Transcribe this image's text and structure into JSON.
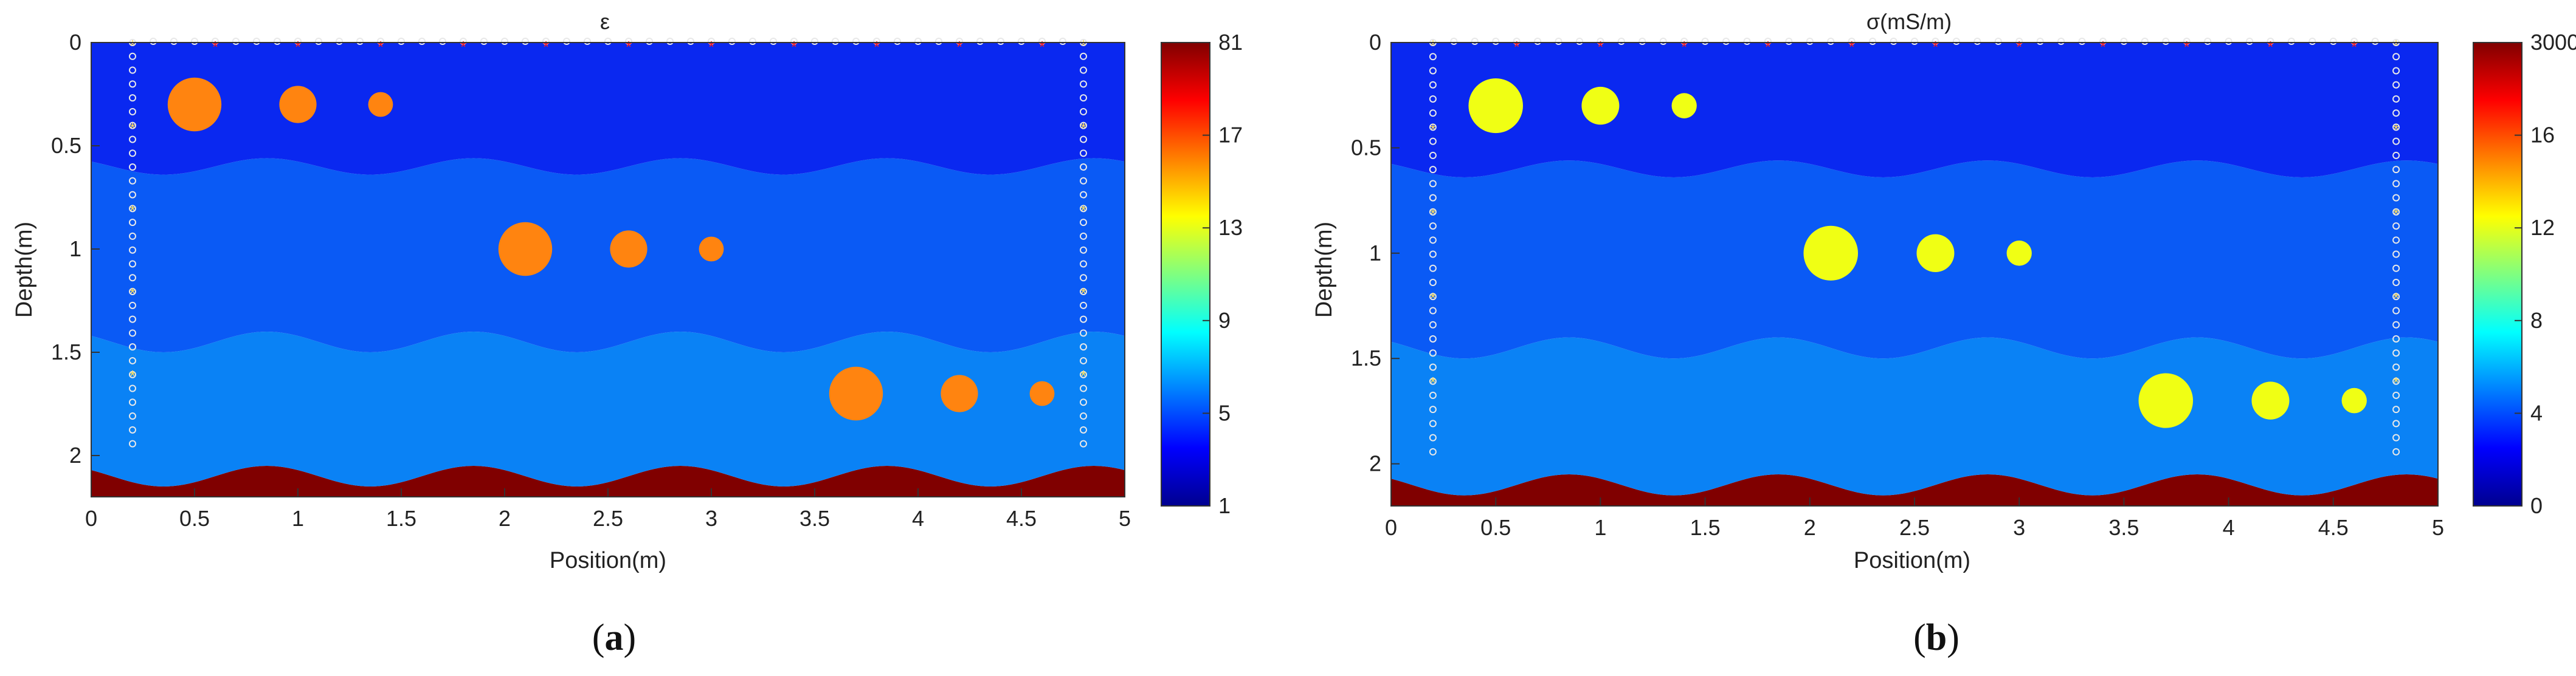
{
  "figure": {
    "panels": [
      {
        "open": "(",
        "letter": "a",
        "close": ")"
      },
      {
        "open": "(",
        "letter": "b",
        "close": ")"
      }
    ]
  },
  "chart_data": [
    {
      "type": "heatmap",
      "title": "ε",
      "xlabel": "Position(m)",
      "ylabel": "Depth(m)",
      "xlim": [
        0,
        5
      ],
      "ylim": [
        0,
        2.2
      ],
      "xticks": [
        "0",
        "0.5",
        "1",
        "1.5",
        "2",
        "2.5",
        "3",
        "3.5",
        "4",
        "4.5",
        "5"
      ],
      "yticks": [
        "0",
        "0.5",
        "1",
        "1.5",
        "2"
      ],
      "colorbar": {
        "ticks": [
          "81",
          "17",
          "13",
          "9",
          "5",
          "1"
        ]
      },
      "colors": {
        "layer1": "#0a28f0",
        "layer2": "#0a5af5",
        "layer3": "#0a82f5",
        "bedrock": "#800000",
        "anomaly": "#ff8410"
      },
      "layers": [
        {
          "name": "layer 1",
          "top_depth": 0,
          "base_depth_mean": 0.6,
          "base_amplitude": 0.04
        },
        {
          "name": "layer 2",
          "base_depth_mean": 1.45,
          "base_amplitude": 0.05
        },
        {
          "name": "layer 3",
          "base_depth_mean": 2.1,
          "base_amplitude": 0.05
        },
        {
          "name": "bedrock",
          "base_depth": 2.2
        }
      ],
      "anomalies": [
        {
          "x": 0.5,
          "depth": 0.3,
          "radius": 0.13
        },
        {
          "x": 1.0,
          "depth": 0.3,
          "radius": 0.09
        },
        {
          "x": 1.4,
          "depth": 0.3,
          "radius": 0.06
        },
        {
          "x": 2.1,
          "depth": 1.0,
          "radius": 0.13
        },
        {
          "x": 2.6,
          "depth": 1.0,
          "radius": 0.09
        },
        {
          "x": 3.0,
          "depth": 1.0,
          "radius": 0.06
        },
        {
          "x": 3.7,
          "depth": 1.7,
          "radius": 0.13
        },
        {
          "x": 4.2,
          "depth": 1.7,
          "radius": 0.09
        },
        {
          "x": 4.6,
          "depth": 1.7,
          "radius": 0.06
        }
      ]
    },
    {
      "type": "heatmap",
      "title": "σ(mS/m)",
      "xlabel": "Position(m)",
      "ylabel": "Depth(m)",
      "xlim": [
        0,
        5
      ],
      "ylim": [
        0,
        2.2
      ],
      "xticks": [
        "0",
        "0.5",
        "1",
        "1.5",
        "2",
        "2.5",
        "3",
        "3.5",
        "4",
        "4.5",
        "5"
      ],
      "yticks": [
        "0",
        "0.5",
        "1",
        "1.5",
        "2"
      ],
      "colorbar": {
        "ticks": [
          "3000",
          "16",
          "12",
          "8",
          "4",
          "0"
        ]
      },
      "colors": {
        "layer1": "#0a28f0",
        "layer2": "#0a5af5",
        "layer3": "#0a82f5",
        "bedrock": "#800000",
        "anomaly": "#f0ff14"
      },
      "layers": [
        {
          "name": "layer 1",
          "top_depth": 0,
          "base_depth_mean": 0.6,
          "base_amplitude": 0.04
        },
        {
          "name": "layer 2",
          "base_depth_mean": 1.45,
          "base_amplitude": 0.05
        },
        {
          "name": "layer 3",
          "base_depth_mean": 2.1,
          "base_amplitude": 0.05
        },
        {
          "name": "bedrock",
          "base_depth": 2.2
        }
      ],
      "anomalies": [
        {
          "x": 0.5,
          "depth": 0.3,
          "radius": 0.13
        },
        {
          "x": 1.0,
          "depth": 0.3,
          "radius": 0.09
        },
        {
          "x": 1.4,
          "depth": 0.3,
          "radius": 0.06
        },
        {
          "x": 2.1,
          "depth": 1.0,
          "radius": 0.13
        },
        {
          "x": 2.6,
          "depth": 1.0,
          "radius": 0.09
        },
        {
          "x": 3.0,
          "depth": 1.0,
          "radius": 0.06
        },
        {
          "x": 3.7,
          "depth": 1.7,
          "radius": 0.13
        },
        {
          "x": 4.2,
          "depth": 1.7,
          "radius": 0.09
        },
        {
          "x": 4.6,
          "depth": 1.7,
          "radius": 0.06
        }
      ]
    }
  ],
  "survey": {
    "source_marker_color": "#ff1a1a",
    "receiver_marker_color": "#e8e8e8",
    "borehole_source_color": "#ffe060",
    "surface_sources_x": [
      0.6,
      1.0,
      1.4,
      1.8,
      2.2,
      2.6,
      3.0,
      3.4,
      3.8,
      4.2,
      4.6
    ],
    "surface_receiver_spacing": 0.1,
    "surface_receiver_range": [
      0.3,
      4.7
    ],
    "borehole_x": [
      0.2,
      4.8
    ],
    "borehole_sources_depth": [
      0.0,
      0.4,
      0.8,
      1.2,
      1.6
    ],
    "borehole_receiver_spacing": 0.067,
    "borehole_receiver_range": [
      0.0,
      2.0
    ]
  }
}
